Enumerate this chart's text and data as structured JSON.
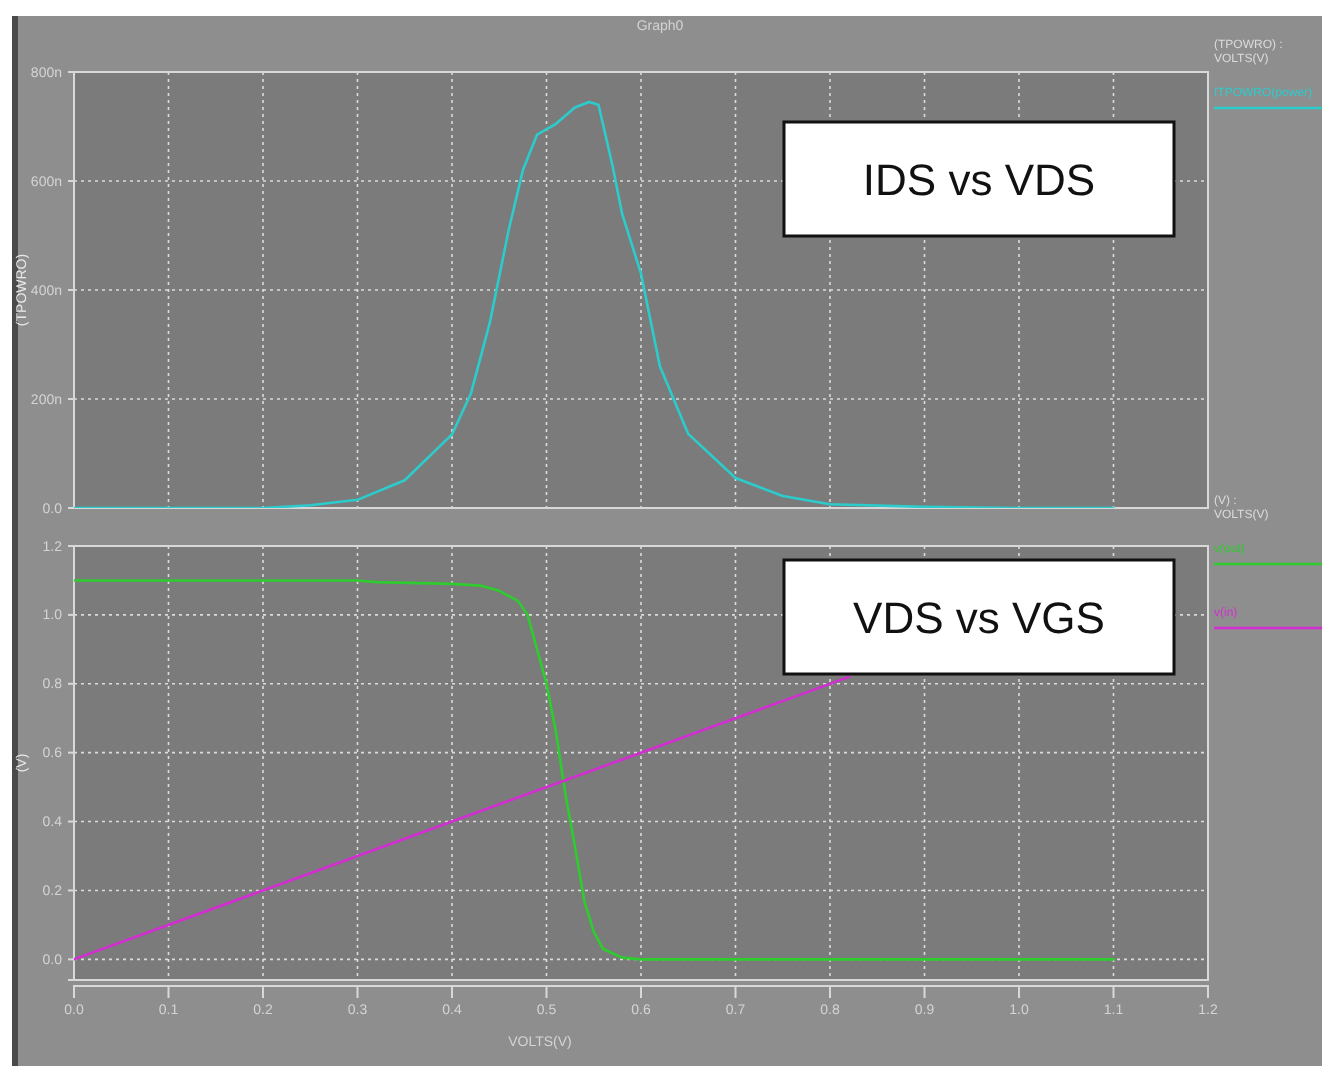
{
  "chart_data": [
    {
      "type": "line",
      "title": "Graph0",
      "ylabel": "(TPOWRO)",
      "legend_title": "(TPOWRO) : VOLTS(V)",
      "legend": "right",
      "grid": true,
      "tick_labels": "y",
      "xlim": [
        0,
        1.2
      ],
      "xticks": [
        0,
        0.1,
        0.2,
        0.3,
        0.4,
        0.5,
        0.6,
        0.7,
        0.8,
        0.9,
        1.0,
        1.1,
        1.2
      ],
      "ylim": [
        0,
        800
      ],
      "yticks": [
        {
          "value": 0,
          "label": "0.0"
        },
        {
          "value": 200,
          "label": "200n"
        },
        {
          "value": 400,
          "label": "400n"
        },
        {
          "value": 600,
          "label": "600n"
        },
        {
          "value": 800,
          "label": "800n"
        }
      ],
      "annotations": [
        "IDS vs VDS"
      ],
      "series": [
        {
          "name": "ITPOWRO(power)",
          "color": "#2ccccc",
          "x": [
            0,
            0.1,
            0.2,
            0.25,
            0.3,
            0.35,
            0.4,
            0.42,
            0.44,
            0.46,
            0.475,
            0.49,
            0.51,
            0.53,
            0.545,
            0.555,
            0.57,
            0.58,
            0.6,
            0.62,
            0.65,
            0.7,
            0.75,
            0.8,
            0.9,
            1.0,
            1.1
          ],
          "values": [
            0,
            0,
            0,
            5,
            15,
            51,
            135,
            210,
            340,
            510,
            620,
            685,
            705,
            735,
            745,
            740,
            627,
            540,
            430,
            260,
            136,
            55,
            22,
            7,
            2,
            0,
            0
          ]
        }
      ]
    },
    {
      "type": "line",
      "xlabel": "VOLTS(V)",
      "ylabel": "(V)",
      "legend_title": "(V) : VOLTS(V)",
      "legend": "right",
      "grid": true,
      "xlim": [
        0,
        1.2
      ],
      "xticks": [
        {
          "value": 0,
          "label": "0.0"
        },
        0.1,
        0.2,
        0.3,
        0.4,
        0.5,
        0.6,
        0.7,
        0.8,
        0.9,
        {
          "value": 1,
          "label": "1.0"
        },
        1.1,
        1.2
      ],
      "ylim": [
        -0.06,
        1.2
      ],
      "yticks": [
        {
          "value": 0,
          "label": "0.0"
        },
        0.2,
        0.4,
        0.6,
        0.8,
        {
          "value": 1,
          "label": "1.0"
        },
        1.2
      ],
      "annotations": [
        "VDS vs VGS"
      ],
      "series": [
        {
          "name": "v(out)",
          "color": "#2ecc2e",
          "x": [
            0,
            0.3,
            0.32,
            0.4,
            0.43,
            0.45,
            0.47,
            0.48,
            0.49,
            0.5,
            0.51,
            0.52,
            0.53,
            0.54,
            0.55,
            0.56,
            0.58,
            0.6,
            1.1
          ],
          "values": [
            1.1,
            1.1,
            1.095,
            1.09,
            1.085,
            1.07,
            1.04,
            1.0,
            0.9,
            0.8,
            0.66,
            0.48,
            0.33,
            0.17,
            0.08,
            0.03,
            0.005,
            0,
            0
          ]
        },
        {
          "name": "v(in)",
          "color": "#d22ed2",
          "x": [
            0,
            0.2,
            0.4,
            0.6,
            0.82
          ],
          "values": [
            0,
            0.2,
            0.4,
            0.6,
            0.82
          ]
        }
      ]
    }
  ]
}
